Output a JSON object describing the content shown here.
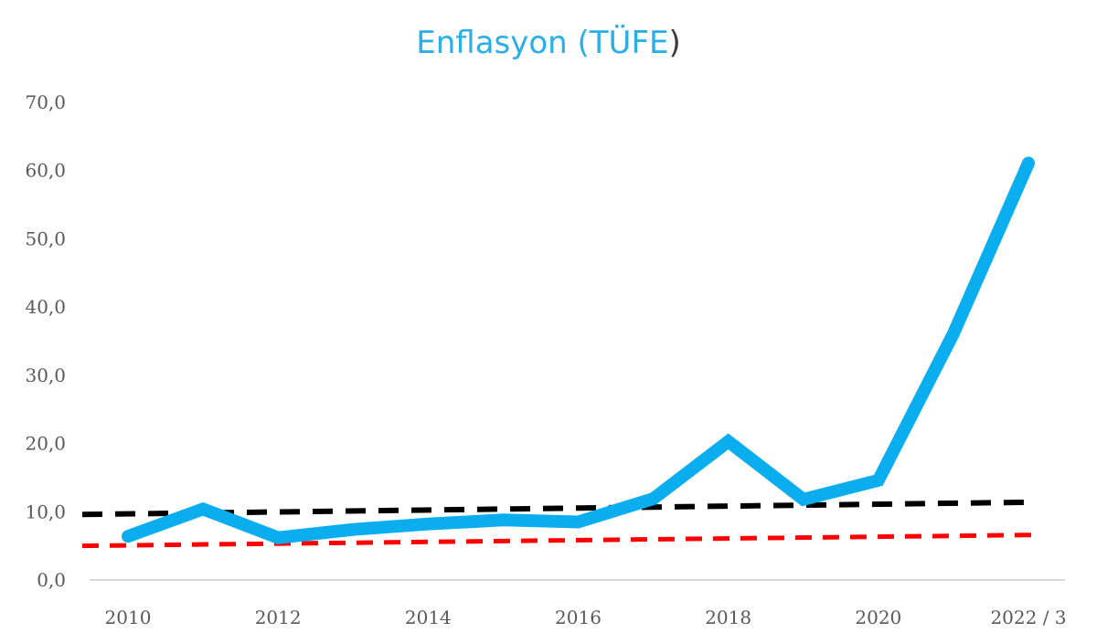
{
  "chart_data": {
    "type": "line",
    "title_main": "Enflasyon (TÜFE",
    "title_close": ")",
    "colors": {
      "title": "#29aee8",
      "title_paren": "#3a3a3a",
      "tufe": "#0aaeef",
      "trend_black": "#000000",
      "trend_red": "#ff0000",
      "axis": "#d9d9d9",
      "tick_text": "#595959"
    },
    "x": [
      2010,
      2011,
      2012,
      2013,
      2014,
      2015,
      2016,
      2017,
      2018,
      2019,
      2020,
      2021,
      2022
    ],
    "x_tick_labels": [
      "2010",
      "2012",
      "2014",
      "2016",
      "2018",
      "2020",
      "2022 / 3"
    ],
    "y_tick_labels": [
      "0,0",
      "10,0",
      "20,0",
      "30,0",
      "40,0",
      "50,0",
      "60,0",
      "70,0"
    ],
    "ylim": [
      0,
      70
    ],
    "grid": false,
    "legend": "none",
    "series": [
      {
        "style": "solid-thick",
        "color": "#0aaeef",
        "values": [
          6.4,
          10.4,
          6.2,
          7.4,
          8.2,
          8.8,
          8.5,
          11.9,
          20.3,
          11.8,
          14.6,
          36.1,
          61.1
        ]
      },
      {
        "style": "dashed",
        "color": "#000000",
        "values_start_end": [
          9.6,
          11.4
        ]
      },
      {
        "style": "dashed",
        "color": "#ff0000",
        "values_start_end": [
          5.0,
          6.6
        ]
      }
    ]
  }
}
